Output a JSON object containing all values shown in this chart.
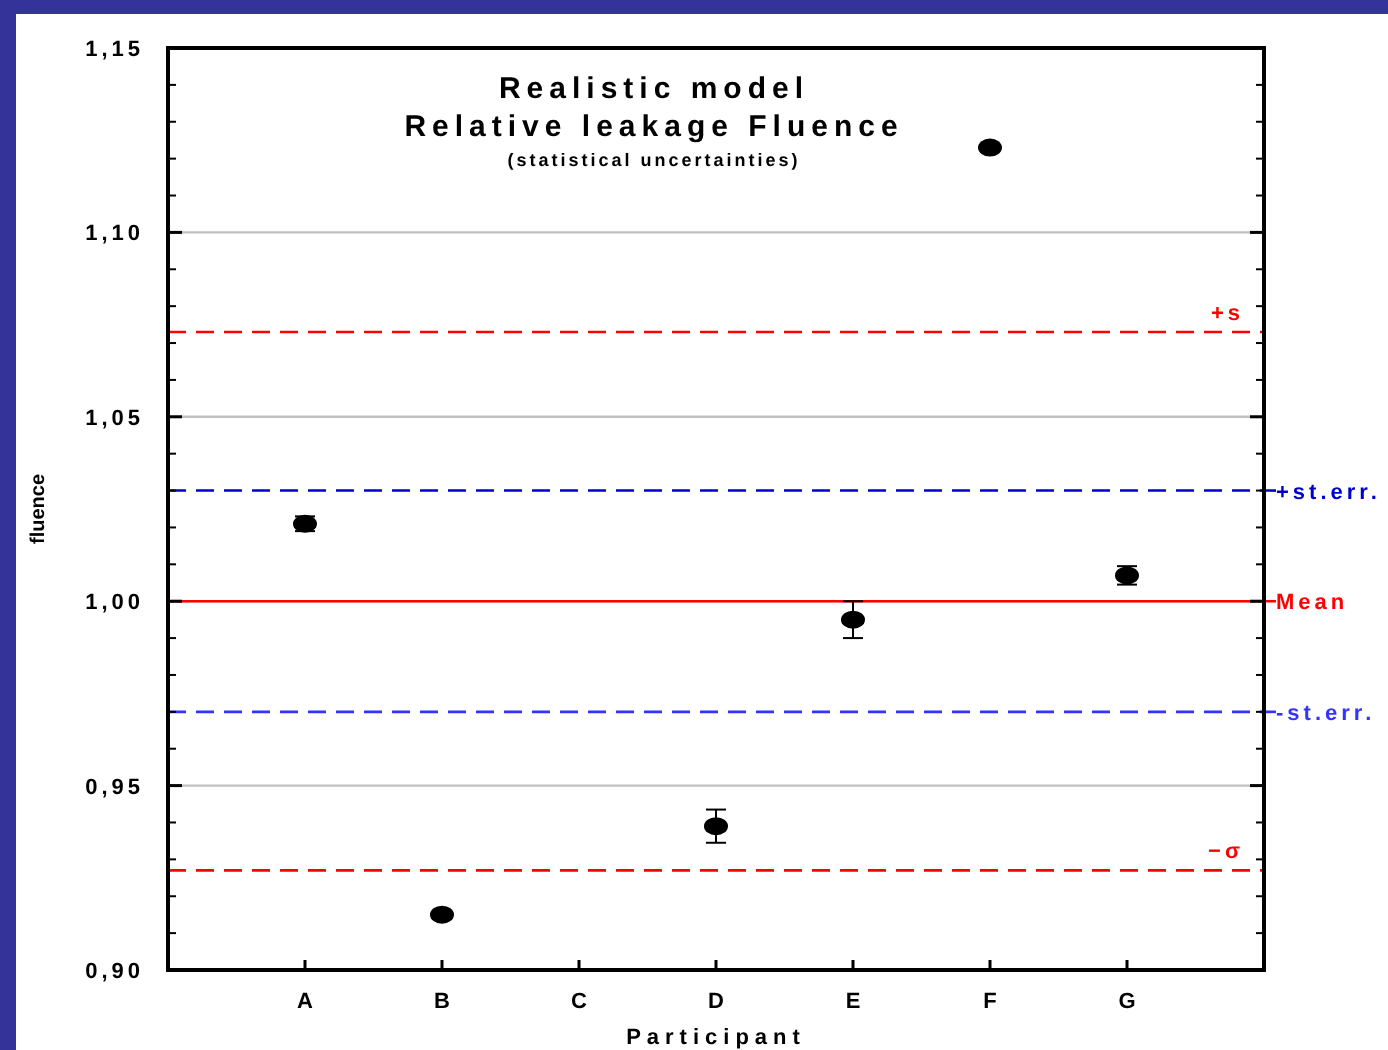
{
  "chart_data": {
    "type": "scatter",
    "title": "Realistic model\nRelative leakage Fluence",
    "subtitle": "(statistical uncertainties)",
    "xlabel": "Participant",
    "ylabel": "fluence",
    "categories": [
      "A",
      "B",
      "C",
      "D",
      "E",
      "F",
      "G"
    ],
    "series": [
      {
        "color": "#000000",
        "values": [
          1.021,
          0.915,
          null,
          0.939,
          0.995,
          1.123,
          1.007
        ],
        "errors": [
          0.002,
          null,
          null,
          0.0045,
          0.005,
          null,
          0.0025
        ]
      }
    ],
    "ylim": [
      0.9,
      1.15
    ],
    "yticks": [
      {
        "value": 0.9,
        "label": "0,90"
      },
      {
        "value": 0.95,
        "label": "0,95"
      },
      {
        "value": 1.0,
        "label": "1,00"
      },
      {
        "value": 1.05,
        "label": "1,05"
      },
      {
        "value": 1.1,
        "label": "1,10"
      },
      {
        "value": 1.15,
        "label": "1,15"
      }
    ],
    "grid": "y",
    "marker": "circle",
    "ref_lines": [
      {
        "axis": "y",
        "value": 1.073,
        "label": "+s",
        "color": "#ff0000",
        "line_style": "dashed"
      },
      {
        "axis": "y",
        "value": 1.03,
        "label": "+st.err.",
        "color": "#0000cc",
        "line_style": "dashed"
      },
      {
        "axis": "y",
        "value": 1.0,
        "label": "Mean",
        "color": "#ff0000",
        "line_style": "solid"
      },
      {
        "axis": "y",
        "value": 0.97,
        "label": "-st.err.",
        "color": "#3333ff",
        "line_style": "dashed"
      },
      {
        "axis": "y",
        "value": 0.927,
        "label": "−σ",
        "color": "#ff0000",
        "line_style": "dashed"
      }
    ]
  }
}
